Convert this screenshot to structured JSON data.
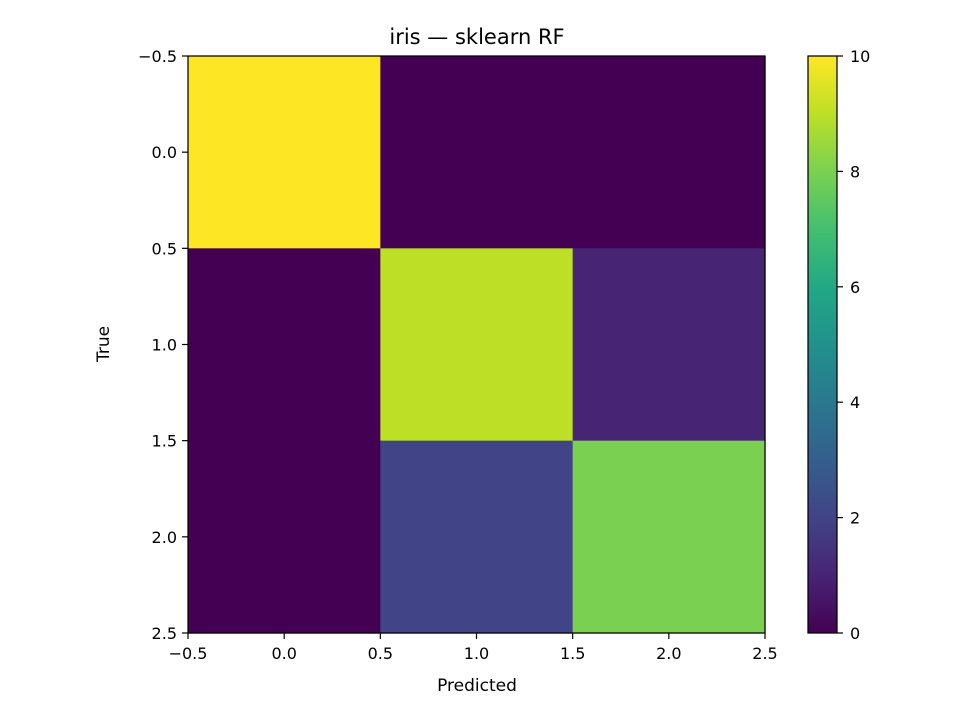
{
  "chart_data": {
    "type": "heatmap",
    "title": "iris — sklearn RF",
    "xlabel": "Predicted",
    "ylabel": "True",
    "matrix": [
      [
        10,
        0,
        0
      ],
      [
        0,
        9,
        1
      ],
      [
        0,
        2,
        8
      ]
    ],
    "xlim": [
      -0.5,
      2.5
    ],
    "ylim": [
      2.5,
      -0.5
    ],
    "x_ticks": [
      "−0.5",
      "0.0",
      "0.5",
      "1.0",
      "1.5",
      "2.0",
      "2.5"
    ],
    "y_ticks": [
      "−0.5",
      "0.0",
      "0.5",
      "1.0",
      "1.5",
      "2.0",
      "2.5"
    ],
    "colorbar": {
      "colormap": "viridis",
      "range": [
        0,
        10
      ],
      "ticks": [
        "0",
        "2",
        "4",
        "6",
        "8",
        "10"
      ]
    },
    "grid": false
  }
}
